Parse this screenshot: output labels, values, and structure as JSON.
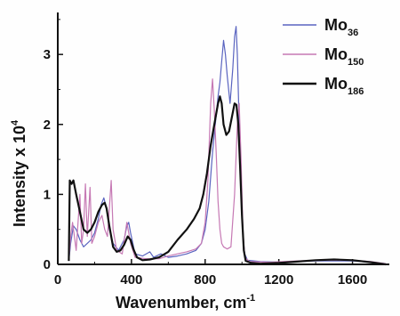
{
  "chart_data": {
    "type": "line",
    "xlabel": "Wavenumber, cm",
    "xlabel_sup": "-1",
    "ylabel": "Intensity x 10",
    "ylabel_sup": "4",
    "xlim": [
      0,
      1800
    ],
    "ylim": [
      0,
      3.6
    ],
    "xticks": [
      0,
      400,
      800,
      1200,
      1600
    ],
    "yticks": [
      0,
      1,
      2,
      3
    ],
    "grid": false,
    "legend_position": "top-right",
    "series": [
      {
        "name": "Mo",
        "name_sub": "36",
        "color": "#5a64c0",
        "stroke_width": 1.2,
        "points": [
          [
            60,
            0.05
          ],
          [
            70,
            0.3
          ],
          [
            85,
            0.55
          ],
          [
            100,
            0.5
          ],
          [
            120,
            0.35
          ],
          [
            140,
            0.25
          ],
          [
            160,
            0.3
          ],
          [
            180,
            0.35
          ],
          [
            200,
            0.45
          ],
          [
            220,
            0.65
          ],
          [
            235,
            0.85
          ],
          [
            250,
            0.95
          ],
          [
            265,
            0.8
          ],
          [
            280,
            0.5
          ],
          [
            300,
            0.3
          ],
          [
            330,
            0.2
          ],
          [
            360,
            0.35
          ],
          [
            375,
            0.55
          ],
          [
            385,
            0.6
          ],
          [
            395,
            0.45
          ],
          [
            420,
            0.15
          ],
          [
            460,
            0.12
          ],
          [
            500,
            0.18
          ],
          [
            520,
            0.1
          ],
          [
            560,
            0.15
          ],
          [
            600,
            0.1
          ],
          [
            650,
            0.12
          ],
          [
            700,
            0.15
          ],
          [
            750,
            0.2
          ],
          [
            780,
            0.3
          ],
          [
            800,
            0.5
          ],
          [
            820,
            0.9
          ],
          [
            840,
            1.6
          ],
          [
            855,
            2.0
          ],
          [
            870,
            2.4
          ],
          [
            880,
            2.6
          ],
          [
            890,
            2.9
          ],
          [
            900,
            3.2
          ],
          [
            910,
            3.0
          ],
          [
            920,
            2.7
          ],
          [
            935,
            2.3
          ],
          [
            950,
            2.8
          ],
          [
            960,
            3.25
          ],
          [
            968,
            3.4
          ],
          [
            975,
            3.0
          ],
          [
            985,
            2.0
          ],
          [
            995,
            1.0
          ],
          [
            1005,
            0.4
          ],
          [
            1015,
            0.15
          ],
          [
            1030,
            0.06
          ],
          [
            1100,
            0.04
          ],
          [
            1200,
            0.03
          ],
          [
            1300,
            0.04
          ],
          [
            1400,
            0.05
          ],
          [
            1500,
            0.05
          ],
          [
            1600,
            0.05
          ],
          [
            1700,
            0.03
          ],
          [
            1780,
            0.01
          ]
        ]
      },
      {
        "name": "Mo",
        "name_sub": "150",
        "color": "#c679b4",
        "stroke_width": 1.2,
        "points": [
          [
            60,
            0.05
          ],
          [
            70,
            0.4
          ],
          [
            80,
            0.6
          ],
          [
            90,
            0.4
          ],
          [
            100,
            0.2
          ],
          [
            110,
            0.6
          ],
          [
            120,
            1.0
          ],
          [
            130,
            0.3
          ],
          [
            140,
            0.5
          ],
          [
            150,
            1.15
          ],
          [
            160,
            0.4
          ],
          [
            175,
            1.1
          ],
          [
            185,
            0.3
          ],
          [
            200,
            0.4
          ],
          [
            220,
            0.6
          ],
          [
            240,
            0.7
          ],
          [
            255,
            0.5
          ],
          [
            270,
            0.4
          ],
          [
            280,
            0.8
          ],
          [
            290,
            1.2
          ],
          [
            300,
            0.5
          ],
          [
            320,
            0.2
          ],
          [
            350,
            0.15
          ],
          [
            375,
            0.6
          ],
          [
            395,
            0.3
          ],
          [
            420,
            0.1
          ],
          [
            480,
            0.08
          ],
          [
            550,
            0.08
          ],
          [
            600,
            0.12
          ],
          [
            650,
            0.15
          ],
          [
            700,
            0.18
          ],
          [
            750,
            0.22
          ],
          [
            780,
            0.3
          ],
          [
            800,
            0.6
          ],
          [
            815,
            1.2
          ],
          [
            830,
            2.3
          ],
          [
            840,
            2.65
          ],
          [
            850,
            2.2
          ],
          [
            860,
            1.6
          ],
          [
            870,
            0.9
          ],
          [
            880,
            0.5
          ],
          [
            890,
            0.3
          ],
          [
            900,
            0.25
          ],
          [
            920,
            0.22
          ],
          [
            940,
            0.25
          ],
          [
            960,
            1.0
          ],
          [
            975,
            2.0
          ],
          [
            985,
            2.3
          ],
          [
            995,
            1.5
          ],
          [
            1005,
            0.5
          ],
          [
            1015,
            0.1
          ],
          [
            1040,
            0.04
          ],
          [
            1150,
            0.03
          ],
          [
            1300,
            0.05
          ],
          [
            1450,
            0.06
          ],
          [
            1600,
            0.06
          ],
          [
            1700,
            0.04
          ],
          [
            1780,
            0.01
          ]
        ]
      },
      {
        "name": "Mo",
        "name_sub": "186",
        "color": "#111111",
        "stroke_width": 2.2,
        "points": [
          [
            60,
            0.05
          ],
          [
            65,
            1.2
          ],
          [
            75,
            1.15
          ],
          [
            85,
            1.2
          ],
          [
            100,
            1.0
          ],
          [
            120,
            0.75
          ],
          [
            140,
            0.5
          ],
          [
            160,
            0.45
          ],
          [
            180,
            0.5
          ],
          [
            200,
            0.6
          ],
          [
            220,
            0.75
          ],
          [
            240,
            0.85
          ],
          [
            255,
            0.88
          ],
          [
            265,
            0.8
          ],
          [
            280,
            0.55
          ],
          [
            300,
            0.25
          ],
          [
            320,
            0.18
          ],
          [
            340,
            0.2
          ],
          [
            360,
            0.28
          ],
          [
            380,
            0.4
          ],
          [
            395,
            0.35
          ],
          [
            410,
            0.22
          ],
          [
            430,
            0.1
          ],
          [
            460,
            0.06
          ],
          [
            500,
            0.07
          ],
          [
            550,
            0.1
          ],
          [
            600,
            0.18
          ],
          [
            650,
            0.35
          ],
          [
            700,
            0.5
          ],
          [
            740,
            0.65
          ],
          [
            770,
            0.8
          ],
          [
            790,
            1.0
          ],
          [
            810,
            1.3
          ],
          [
            830,
            1.7
          ],
          [
            850,
            2.0
          ],
          [
            870,
            2.3
          ],
          [
            880,
            2.4
          ],
          [
            890,
            2.3
          ],
          [
            900,
            2.0
          ],
          [
            915,
            1.85
          ],
          [
            930,
            1.9
          ],
          [
            945,
            2.1
          ],
          [
            960,
            2.3
          ],
          [
            970,
            2.28
          ],
          [
            980,
            2.0
          ],
          [
            990,
            1.4
          ],
          [
            1000,
            0.7
          ],
          [
            1010,
            0.2
          ],
          [
            1020,
            0.05
          ],
          [
            1050,
            0.02
          ],
          [
            1100,
            0.01
          ],
          [
            1200,
            0.02
          ],
          [
            1300,
            0.04
          ],
          [
            1400,
            0.06
          ],
          [
            1500,
            0.07
          ],
          [
            1600,
            0.06
          ],
          [
            1700,
            0.03
          ],
          [
            1780,
            0.0
          ]
        ]
      }
    ]
  }
}
